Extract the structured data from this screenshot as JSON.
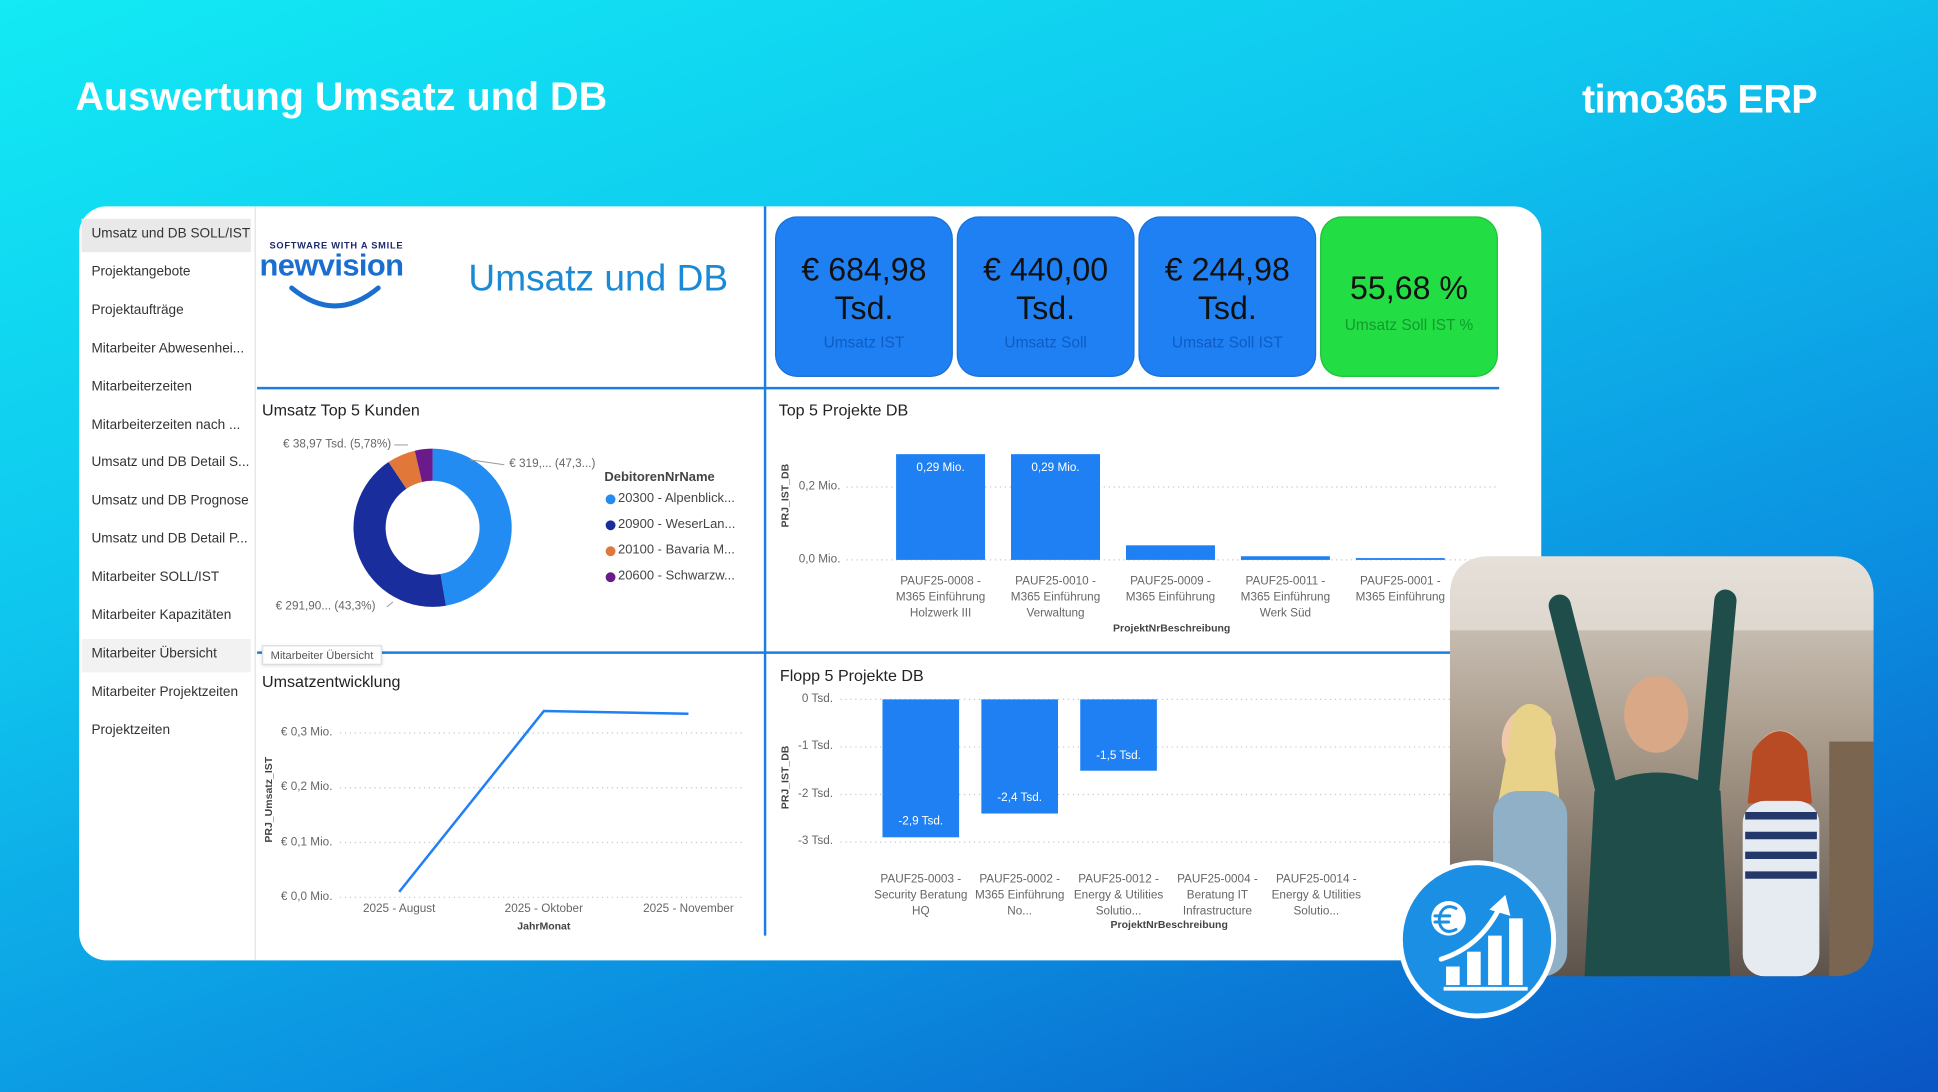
{
  "header": {
    "title": "Auswertung Umsatz und DB",
    "brand": "timo365 ERP"
  },
  "nav": {
    "items": [
      "Umsatz und DB SOLL/IST",
      "Projektangebote",
      "Projektaufträge",
      "Mitarbeiter Abwesenhei...",
      "Mitarbeiterzeiten",
      "Mitarbeiterzeiten nach ...",
      "Umsatz und DB Detail S...",
      "Umsatz und DB Prognose",
      "Umsatz und DB Detail P...",
      "Mitarbeiter SOLL/IST",
      "Mitarbeiter Kapazitäten",
      "Mitarbeiter Übersicht",
      "Mitarbeiter Projektzeiten",
      "Projektzeiten"
    ],
    "tooltip": "Mitarbeiter Übersicht"
  },
  "report": {
    "logo_tagline": "SOFTWARE WITH A SMILE",
    "logo": "newvision",
    "title": "Umsatz und DB"
  },
  "kpis": [
    {
      "value": "€ 684,98 Tsd.",
      "label": "Umsatz IST",
      "color": "#1e80f2"
    },
    {
      "value": "€ 440,00 Tsd.",
      "label": "Umsatz Soll",
      "color": "#1e80f2"
    },
    {
      "value": "€ 244,98 Tsd.",
      "label": "Umsatz Soll IST",
      "color": "#1e80f2"
    },
    {
      "value": "55,68 %",
      "label": "Umsatz Soll IST %",
      "color": "#22dd44"
    }
  ],
  "chart_data": [
    {
      "type": "pie",
      "title": "Umsatz Top 5 Kunden",
      "legend_title": "DebitorenNrName",
      "categories": [
        "20300 - Alpenblick...",
        "20900 - WeserLan...",
        "20100 - Bavaria M...",
        "20600 - Schwarzw..."
      ],
      "values": [
        47.3,
        43.3,
        5.78,
        3.62
      ],
      "value_labels": [
        "€ 319,... (47,3...)",
        "€ 291,90... (43,3%)",
        "€ 38,97 Tsd. (5,78%)",
        null
      ],
      "colors": [
        "#228cf2",
        "#1a2d9c",
        "#e2773a",
        "#6b1a8c"
      ]
    },
    {
      "type": "bar",
      "title": "Top 5 Projekte DB",
      "y_label": "PRJ_IST_DB",
      "x_label": "ProjektNrBeschreibung",
      "categories": [
        "PAUF25-0008 - M365 Einführung Holzwerk III",
        "PAUF25-0010 - M365 Einführung Verwaltung",
        "PAUF25-0009 - M365 Einführung",
        "PAUF25-0011 - M365 Einführung Werk Süd",
        "PAUF25-0001 - M365 Einführung"
      ],
      "values": [
        0.29,
        0.29,
        0.04,
        0.01,
        0.005
      ],
      "value_labels": [
        "0,29 Mio.",
        "0,29 Mio.",
        null,
        null,
        null
      ],
      "color": "#1e80f2",
      "ylim": [
        0,
        0.32
      ],
      "yticks": [
        {
          "value": 0,
          "label": "0,0 Mio."
        },
        {
          "value": 0.2,
          "label": "0,2 Mio."
        }
      ],
      "grid": true
    },
    {
      "type": "line",
      "title": "Umsatzentwicklung",
      "y_label": "PRJ_Umsatz_IST",
      "x_label": "JahrMonat",
      "categories": [
        "2025 - August",
        "2025 - Oktober",
        "2025 - November"
      ],
      "values": [
        0.01,
        0.34,
        0.335
      ],
      "color": "#1e80f2",
      "ylim": [
        0,
        0.37
      ],
      "yticks": [
        {
          "value": 0,
          "label": "€ 0,0 Mio."
        },
        {
          "value": 0.1,
          "label": "€ 0,1 Mio."
        },
        {
          "value": 0.2,
          "label": "€ 0,2 Mio."
        },
        {
          "value": 0.3,
          "label": "€ 0,3 Mio."
        }
      ],
      "grid": true
    },
    {
      "type": "bar",
      "title": "Flopp 5 Projekte DB",
      "y_label": "PRJ_IST_DB",
      "x_label": "ProjektNrBeschreibung",
      "categories": [
        "PAUF25-0003 - Security Beratung HQ",
        "PAUF25-0002 - M365 Einführung No...",
        "PAUF25-0012 - Energy & Utilities Solutio...",
        "PAUF25-0004 - Beratung IT Infrastructure",
        "PAUF25-0014 - Energy & Utilities Solutio..."
      ],
      "values": [
        -2.9,
        -2.4,
        -1.5,
        0,
        0
      ],
      "value_labels": [
        "-2,9 Tsd.",
        "-2,4 Tsd.",
        "-1,5 Tsd.",
        null,
        null
      ],
      "color": "#1e80f2",
      "ylim": [
        -3.2,
        0.1
      ],
      "yticks": [
        {
          "value": 0,
          "label": "0 Tsd."
        },
        {
          "value": -1,
          "label": "-1 Tsd."
        },
        {
          "value": -2,
          "label": "-2 Tsd."
        },
        {
          "value": -3,
          "label": "-3 Tsd."
        }
      ],
      "grid": true
    }
  ]
}
